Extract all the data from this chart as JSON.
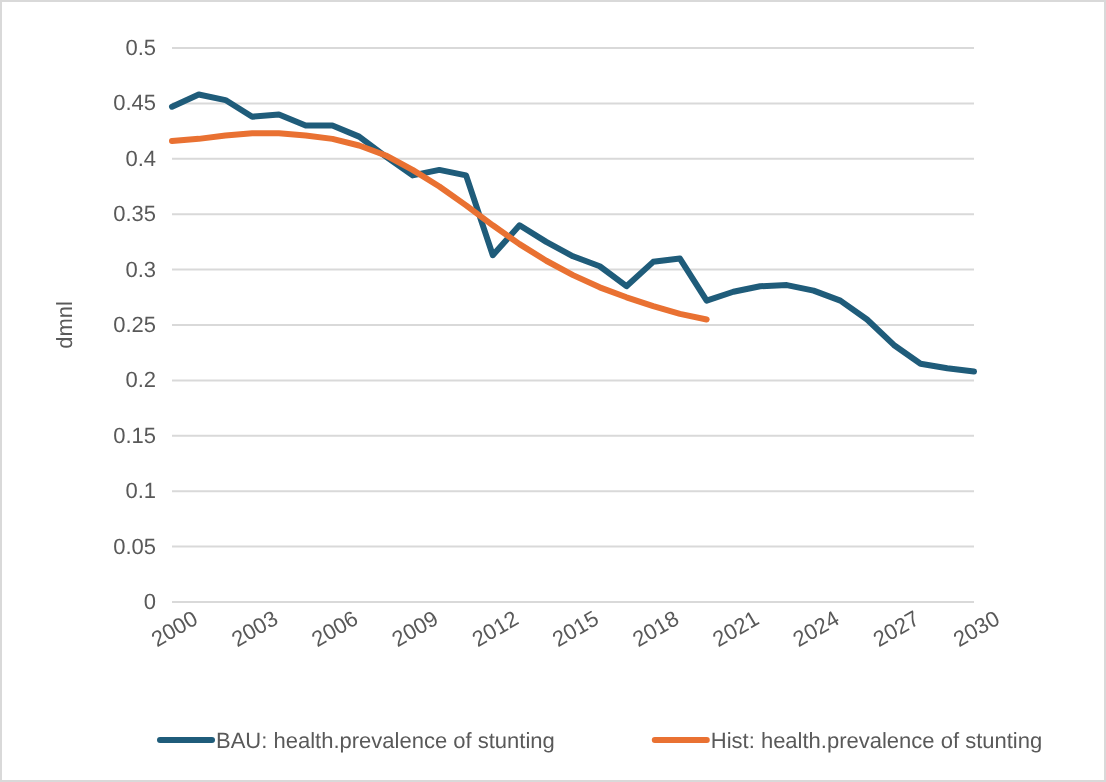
{
  "chart_data": {
    "type": "line",
    "ylabel": "dmnl",
    "xlim": [
      2000,
      2030
    ],
    "xticks": [
      2000,
      2003,
      2006,
      2009,
      2012,
      2015,
      2018,
      2021,
      2024,
      2027,
      2030
    ],
    "ylim": [
      0,
      0.5
    ],
    "yticks": [
      0,
      0.05,
      0.1,
      0.15,
      0.2,
      0.25,
      0.3,
      0.35,
      0.4,
      0.45,
      0.5
    ],
    "grid": "y",
    "legend": "bottom",
    "marker": "none",
    "line_style": "solid",
    "x": [
      2000,
      2001,
      2002,
      2003,
      2004,
      2005,
      2006,
      2007,
      2008,
      2009,
      2010,
      2011,
      2012,
      2013,
      2014,
      2015,
      2016,
      2017,
      2018,
      2019,
      2020,
      2021,
      2022,
      2023,
      2024,
      2025,
      2026,
      2027,
      2028,
      2029,
      2030
    ],
    "series": [
      {
        "name": "BAU: health.prevalence of stunting",
        "color": "#1f5c7a",
        "values": [
          0.447,
          0.458,
          0.453,
          0.438,
          0.44,
          0.43,
          0.43,
          0.42,
          0.402,
          0.385,
          0.39,
          0.385,
          0.313,
          0.34,
          0.325,
          0.312,
          0.303,
          0.285,
          0.307,
          0.31,
          0.272,
          0.28,
          0.285,
          0.286,
          0.281,
          0.272,
          0.255,
          0.232,
          0.215,
          0.211,
          0.208
        ]
      },
      {
        "name": "Hist: health.prevalence of stunting",
        "color": "#e97132",
        "values": [
          0.416,
          0.418,
          0.421,
          0.423,
          0.423,
          0.421,
          0.418,
          0.412,
          0.403,
          0.39,
          0.375,
          0.358,
          0.34,
          0.323,
          0.308,
          0.295,
          0.284,
          0.275,
          0.267,
          0.26,
          0.255,
          null,
          null,
          null,
          null,
          null,
          null,
          null,
          null,
          null,
          null
        ]
      }
    ]
  }
}
